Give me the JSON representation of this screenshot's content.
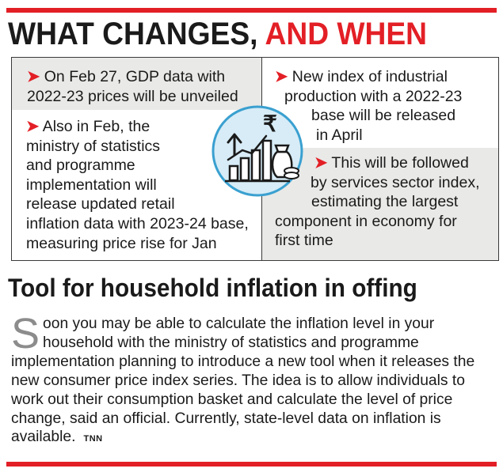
{
  "colors": {
    "accent": "#e31f26",
    "shade": "#e9e9e7",
    "icon_bg": "#d7ecf6",
    "icon_ring": "#3aa0d0",
    "text": "#1a1a1a",
    "dropcap": "#8c8c8c"
  },
  "header": {
    "title_part1": "WHAT CHANGES,",
    "title_part2": "AND WHEN"
  },
  "points": {
    "gdp": {
      "arrow": "➤",
      "lines": [
        "On Feb 27, GDP data with",
        "2022-23 prices will be unveiled"
      ]
    },
    "retail": {
      "arrow": "➤",
      "lines": [
        "Also in Feb, the",
        "ministry of statistics",
        "and programme",
        "implementation will",
        "release updated retail",
        "inflation data with 2023-24 base,",
        "measuring price rise for Jan"
      ]
    },
    "iip": {
      "arrow": "➤",
      "lines": [
        "New index of industrial",
        "production with a 2022-23",
        "base will be released",
        "in April"
      ]
    },
    "services": {
      "arrow": "➤",
      "lines": [
        "This will be followed",
        "by services sector index,",
        "estimating the largest",
        "component in economy for",
        "first time"
      ]
    }
  },
  "icon": {
    "name": "inflation-growth-icon",
    "rupee": "₹"
  },
  "story": {
    "headline": "Tool for household inflation in offing",
    "dropcap": "S",
    "text": "oon you may be able to calculate the inflation level in your household with the ministry of statistics and programme implementation planning to introduce a new tool when it releases the new consumer price index series. The idea is to allow individuals to work out their consumption basket and calculate the level of price change, said an official. Currently, state-level data on inflation is available.",
    "credit": "TNN"
  }
}
